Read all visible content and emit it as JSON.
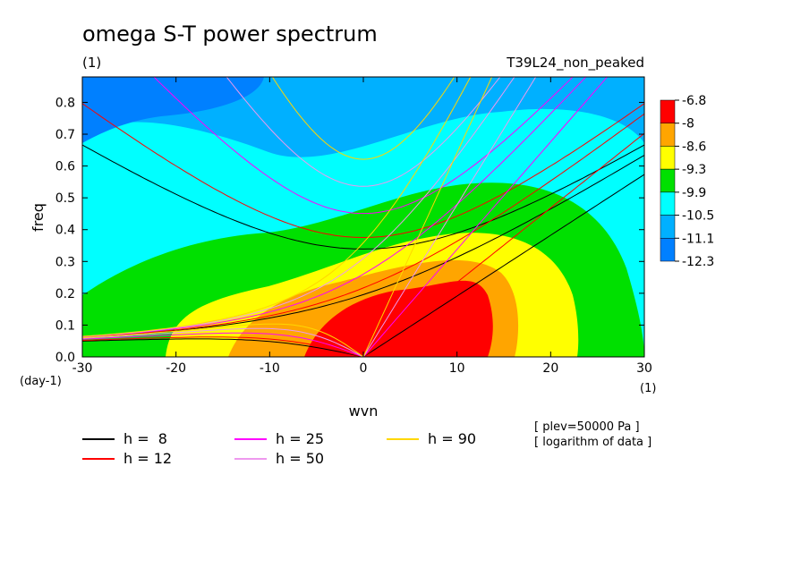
{
  "chart_data": {
    "type": "heatmap",
    "title": "omega S-T power spectrum",
    "units_label": "(1)",
    "run_label": "T39L24_non_peaked",
    "xlabel": "wvn",
    "ylabel": "freq",
    "x_unit": "(1)",
    "y_unit": "(day-1)",
    "xlim": [
      -30,
      30
    ],
    "ylim": [
      0,
      0.88
    ],
    "x_ticks": [
      -30,
      -20,
      -10,
      0,
      10,
      20,
      30
    ],
    "x_tick_labels": [
      "-30",
      "-20",
      "-10",
      "0",
      "10",
      "20",
      "30"
    ],
    "y_ticks": [
      0,
      0.1,
      0.2,
      0.3,
      0.4,
      0.5,
      0.6,
      0.7,
      0.8
    ],
    "y_tick_labels": [
      "0.0",
      "0.1",
      "0.2",
      "0.3",
      "0.4",
      "0.5",
      "0.6",
      "0.7",
      "0.8"
    ],
    "colorbar": {
      "levels": [
        "-6.8",
        "-8",
        "-8.6",
        "-9.3",
        "-9.9",
        "-10.5",
        "-11.1",
        "-12.3"
      ],
      "colors": [
        "#ff0000",
        "#ffa500",
        "#ffff00",
        "#00e000",
        "#00ffff",
        "#00b0ff",
        "#0080ff"
      ]
    },
    "field_description": "log power, peak ~-6.8 near wvn 5, freq 0.1; decreasing outward",
    "dispersion_curves": [
      {
        "label": "h =  8",
        "h": 8,
        "color": "#000000"
      },
      {
        "label": "h = 12",
        "h": 12,
        "color": "#ff0000"
      },
      {
        "label": "h = 25",
        "h": 25,
        "color": "#ff00ff"
      },
      {
        "label": "h = 50",
        "h": 50,
        "color": "#ee99ee"
      },
      {
        "label": "h = 90",
        "h": 90,
        "color": "#ffd700"
      }
    ],
    "annotations": [
      "[ plev=50000 Pa ]",
      "[ logarithm of data ]"
    ]
  }
}
